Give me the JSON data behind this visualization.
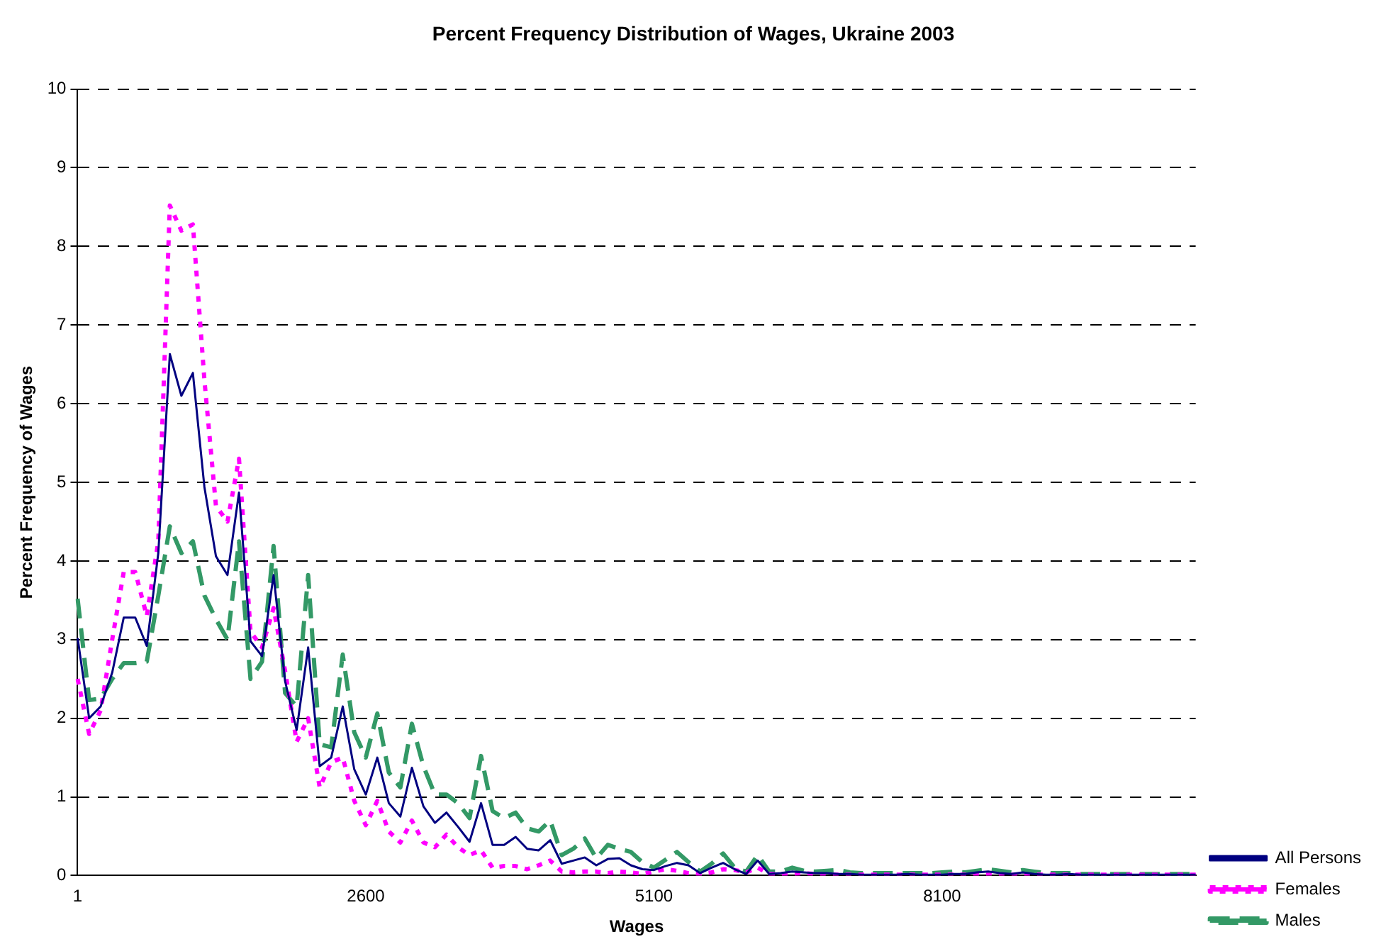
{
  "chart_data": {
    "type": "line",
    "title": "Percent Frequency Distribution of Wages, Ukraine 2003",
    "xlabel": "Wages",
    "ylabel": "Percent Frequency of Wages",
    "categories": [
      "1",
      null,
      null,
      null,
      null,
      null,
      null,
      null,
      null,
      null,
      null,
      null,
      null,
      null,
      null,
      null,
      null,
      null,
      null,
      null,
      null,
      null,
      null,
      null,
      null,
      "2600",
      null,
      null,
      null,
      null,
      null,
      null,
      null,
      null,
      null,
      null,
      null,
      null,
      null,
      null,
      null,
      null,
      null,
      null,
      null,
      null,
      null,
      null,
      null,
      null,
      "5100",
      null,
      null,
      null,
      null,
      null,
      null,
      null,
      null,
      null,
      null,
      null,
      null,
      null,
      null,
      null,
      null,
      null,
      null,
      null,
      null,
      null,
      null,
      null,
      null,
      "8100",
      null,
      null,
      null,
      null,
      null,
      null,
      null,
      null,
      null,
      null,
      null,
      null,
      null,
      null,
      null,
      null,
      null,
      null,
      null,
      null,
      null,
      null
    ],
    "series": [
      {
        "name": "All Persons",
        "color": "#000080",
        "line_style": "solid",
        "values": [
          3.02,
          2.0,
          2.15,
          2.58,
          3.28,
          3.28,
          2.92,
          4.1,
          6.63,
          6.1,
          6.39,
          4.94,
          4.06,
          3.82,
          4.87,
          2.98,
          2.79,
          3.82,
          2.47,
          1.85,
          2.9,
          1.39,
          1.5,
          2.15,
          1.35,
          1.03,
          1.5,
          0.92,
          0.75,
          1.37,
          0.88,
          0.67,
          0.8,
          0.62,
          0.43,
          0.92,
          0.39,
          0.39,
          0.49,
          0.34,
          0.32,
          0.45,
          0.15,
          0.19,
          0.23,
          0.13,
          0.21,
          0.22,
          0.13,
          0.08,
          0.07,
          0.12,
          0.16,
          0.13,
          0.03,
          0.1,
          0.16,
          0.08,
          0.02,
          0.19,
          0.02,
          0.03,
          0.05,
          0.04,
          0.03,
          0.03,
          0.02,
          0.02,
          0.01,
          0.01,
          0.01,
          0.01,
          0.02,
          0.01,
          0.01,
          0.01,
          0.02,
          0.02,
          0.04,
          0.05,
          0.03,
          0.02,
          0.04,
          0.02,
          0.01,
          0.01,
          0.02,
          0.01,
          0.01,
          0.01,
          0.01,
          0.01,
          0.01,
          0.01,
          0.01,
          0.01,
          0.01,
          0.01
        ]
      },
      {
        "name": "Females",
        "color": "#ff00ff",
        "line_style": "dotted",
        "values": [
          2.5,
          1.8,
          2.1,
          3.0,
          3.86,
          3.86,
          3.3,
          4.25,
          8.52,
          8.2,
          8.28,
          6.3,
          4.7,
          4.5,
          5.3,
          3.1,
          2.9,
          3.4,
          2.6,
          1.7,
          2.0,
          1.12,
          1.44,
          1.5,
          0.95,
          0.64,
          0.95,
          0.56,
          0.42,
          0.7,
          0.42,
          0.36,
          0.52,
          0.36,
          0.26,
          0.32,
          0.1,
          0.12,
          0.12,
          0.08,
          0.13,
          0.19,
          0.05,
          0.04,
          0.05,
          0.05,
          0.03,
          0.05,
          0.04,
          0.02,
          0.05,
          0.08,
          0.06,
          0.03,
          0.02,
          0.04,
          0.08,
          0.07,
          0.04,
          0.1,
          0.02,
          0.02,
          0.02,
          0.03,
          0.02,
          0.01,
          0.01,
          0.01,
          0.01,
          0.01,
          0.01,
          0.01,
          0.01,
          0.01,
          0.01,
          0.01,
          0.01,
          0.01,
          0.01,
          0.01,
          0.01,
          0.01,
          0.01,
          0.01,
          0.01,
          0.01,
          0.01,
          0.01,
          0.01,
          0.01,
          0.01,
          0.01,
          0.01,
          0.01,
          0.01,
          0.01,
          0.01,
          0.01
        ]
      },
      {
        "name": "Males",
        "color": "#339966",
        "line_style": "dashed",
        "values": [
          3.52,
          2.23,
          2.25,
          2.5,
          2.7,
          2.7,
          2.72,
          3.56,
          4.44,
          4.1,
          4.25,
          3.56,
          3.26,
          3.0,
          4.25,
          2.5,
          2.72,
          4.19,
          2.32,
          2.15,
          3.82,
          1.67,
          1.63,
          2.81,
          1.82,
          1.5,
          2.06,
          1.31,
          1.12,
          1.93,
          1.39,
          1.03,
          1.03,
          0.92,
          0.73,
          1.52,
          0.82,
          0.73,
          0.8,
          0.6,
          0.56,
          0.7,
          0.26,
          0.34,
          0.47,
          0.22,
          0.39,
          0.34,
          0.3,
          0.17,
          0.1,
          0.2,
          0.3,
          0.17,
          0.05,
          0.15,
          0.28,
          0.1,
          0.05,
          0.26,
          0.05,
          0.05,
          0.1,
          0.06,
          0.05,
          0.06,
          0.07,
          0.04,
          0.03,
          0.03,
          0.03,
          0.03,
          0.03,
          0.03,
          0.03,
          0.04,
          0.05,
          0.04,
          0.06,
          0.08,
          0.06,
          0.04,
          0.07,
          0.05,
          0.03,
          0.03,
          0.03,
          0.02,
          0.02,
          0.02,
          0.02,
          0.02,
          0.02,
          0.02,
          0.02,
          0.02,
          0.02,
          0.02
        ]
      }
    ],
    "ylim": [
      0,
      10
    ],
    "yticks": [
      0,
      1,
      2,
      3,
      4,
      5,
      6,
      7,
      8,
      9,
      10
    ],
    "grid": "y",
    "legend": "bottom right",
    "marker": "none"
  }
}
